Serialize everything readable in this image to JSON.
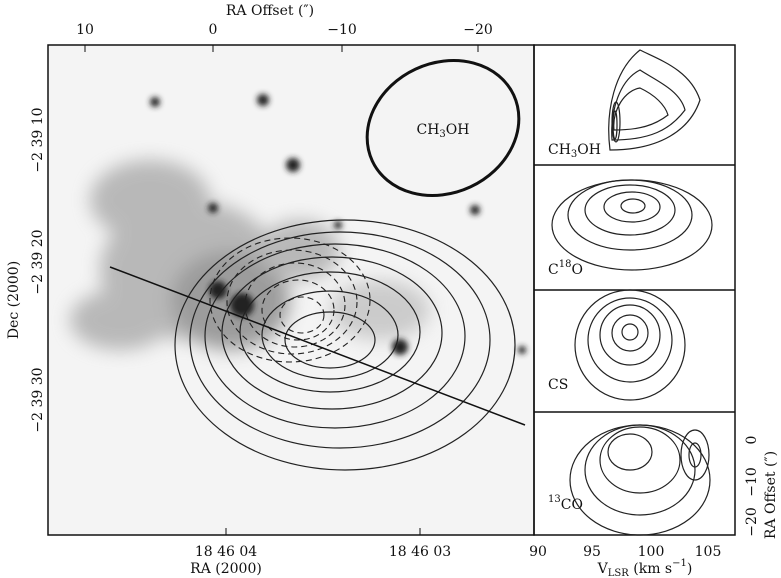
{
  "top_axis": {
    "label": "RA Offset (″)",
    "ticks": [
      "10",
      "0",
      "−10",
      "−20"
    ]
  },
  "left_axis": {
    "label": "Dec (2000)",
    "ticks": [
      "−2 39 10",
      "−2 39 20",
      "−2 39 30"
    ]
  },
  "bottom_axis": {
    "label": "RA (2000)",
    "ticks": [
      "18 46 04",
      "18 46 03"
    ]
  },
  "beam_label": [
    {
      "t": "CH"
    },
    {
      "sub": "3"
    },
    {
      "t": "OH"
    }
  ],
  "panels": [
    {
      "label": [
        {
          "t": "CH"
        },
        {
          "sub": "3"
        },
        {
          "t": "OH"
        }
      ]
    },
    {
      "label": [
        {
          "t": "C"
        },
        {
          "sup": "18"
        },
        {
          "t": "O"
        }
      ]
    },
    {
      "label": [
        {
          "t": "CS"
        }
      ]
    },
    {
      "label": [
        {
          "sup": "13"
        },
        {
          "t": "CO"
        }
      ]
    }
  ],
  "spectral_axis": {
    "label": [
      {
        "t": "V"
      },
      {
        "sub": "LSR"
      },
      {
        "t": " (km s"
      },
      {
        "sup": "−1"
      },
      {
        "t": ")"
      }
    ],
    "ticks": [
      "90",
      "95",
      "100",
      "105"
    ]
  },
  "offset_axis": {
    "label": "RA Offset (″)",
    "ticks": [
      "0",
      "−10",
      "−20"
    ]
  }
}
